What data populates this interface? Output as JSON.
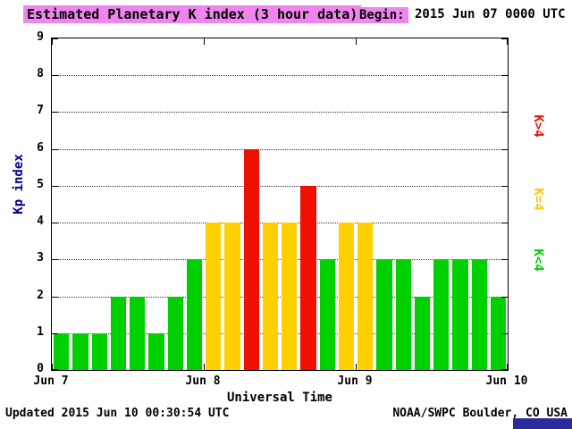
{
  "header": {
    "title": "Estimated Planetary K index (3 hour data)",
    "begin_label": "Begin:",
    "begin_value": "2015 Jun 07 0000 UTC"
  },
  "chart_data": {
    "type": "bar",
    "title": "Estimated Planetary K index (3 hour data)",
    "begin": "2015 Jun 07 0000 UTC",
    "xlabel": "Universal Time",
    "ylabel": "Kp index",
    "ylim": [
      0,
      9
    ],
    "yticks": [
      0,
      1,
      2,
      3,
      4,
      5,
      6,
      7,
      8,
      9
    ],
    "x_day_ticks": [
      "Jun 7",
      "Jun 8",
      "Jun 9",
      "Jun 10"
    ],
    "bars_per_day": 8,
    "grid": true,
    "values": [
      1,
      1,
      1,
      2,
      2,
      1,
      2,
      3,
      4,
      4,
      6,
      4,
      4,
      5,
      3,
      4,
      4,
      3,
      3,
      2,
      3,
      3,
      3,
      2
    ],
    "color_rules": {
      "below4": "#00d000",
      "equal4": "#ffd000",
      "above4": "#ee1000"
    },
    "legend": [
      {
        "label": "K>4",
        "color": "#ee1000"
      },
      {
        "label": "K=4",
        "color": "#ffc800"
      },
      {
        "label": "K<4",
        "color": "#00d000"
      }
    ],
    "legend_position": "right"
  },
  "footer": {
    "updated": "Updated 2015 Jun 10 00:30:54 UTC",
    "credit": "NOAA/SWPC Boulder, CO USA"
  },
  "colors": {
    "title_highlight": "#ee86ee",
    "y_axis_label": "#000090",
    "corner_box": "#2b2b9e"
  }
}
